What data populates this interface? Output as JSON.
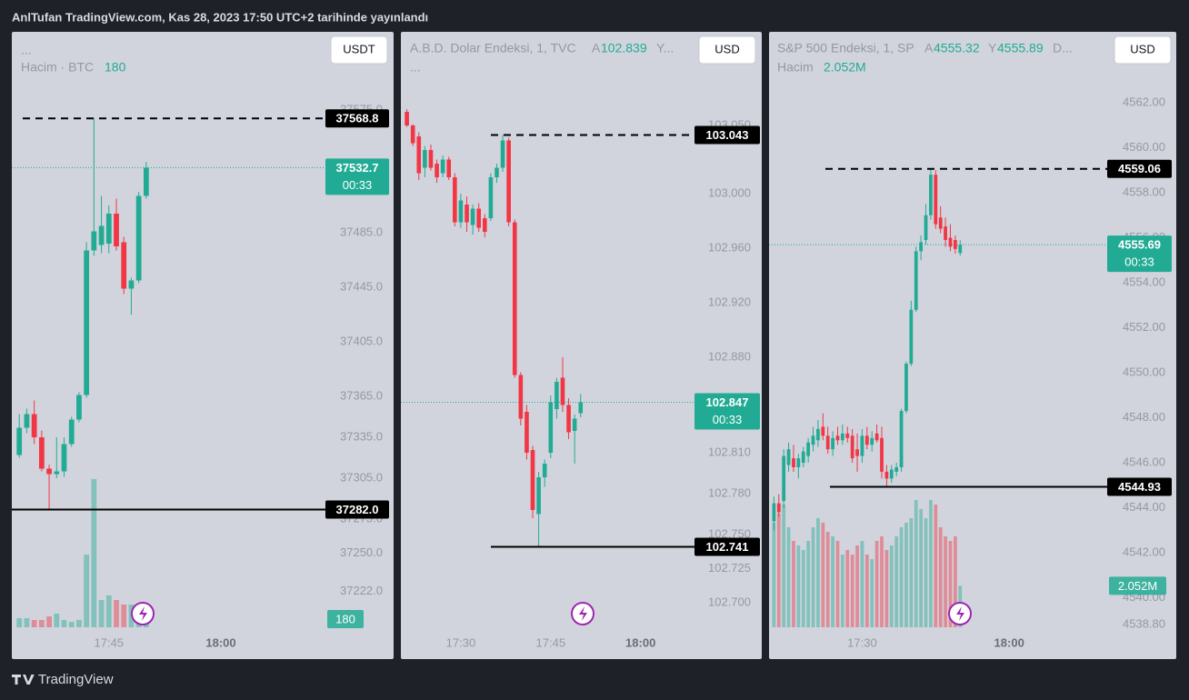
{
  "header": "AnlTufan TradingView.com, Kas 28, 2023 17:50 UTC+2 tarihinde yayınlandı",
  "footer": "TradingView",
  "chart_data": [
    {
      "type": "candlestick",
      "title": "...",
      "legend": [
        "Hacim · BTC"
      ],
      "currency": "USDT",
      "x": [
        "17:33",
        "17:34",
        "17:35",
        "17:36",
        "17:37",
        "17:38",
        "17:39",
        "17:40",
        "17:41",
        "17:42",
        "17:43",
        "17:44",
        "17:45",
        "17:46",
        "17:47",
        "17:48",
        "17:49",
        "17:50"
      ],
      "open": [
        37322,
        37342,
        37352,
        37335,
        37312,
        37308,
        37310,
        37330,
        37348,
        37366,
        37472,
        37476,
        37477,
        37499,
        37478,
        37444,
        37450,
        37512
      ],
      "high": [
        37352,
        37356,
        37362,
        37340,
        37315,
        37335,
        37335,
        37350,
        37368,
        37478,
        37568.8,
        37512,
        37505,
        37510,
        37482,
        37452,
        37515,
        37537
      ],
      "low": [
        37320,
        37338,
        37330,
        37310,
        37282,
        37305,
        37306,
        37328,
        37346,
        37364,
        37468,
        37470,
        37470,
        37472,
        37440,
        37425,
        37448,
        37510
      ],
      "close": [
        37342,
        37352,
        37335,
        37312,
        37308,
        37310,
        37330,
        37348,
        37366,
        37472,
        37486,
        37490,
        37499,
        37475,
        37444,
        37450,
        37512,
        37532.7
      ],
      "volume": {
        "values": [
          200,
          200,
          160,
          160,
          240,
          300,
          160,
          120,
          160,
          1600,
          3260,
          600,
          700,
          600,
          500,
          500,
          440,
          180
        ],
        "vlim": [
          0,
          4000
        ]
      },
      "volume_badge": {
        "value": 180
      },
      "up_color": "#22ab94",
      "down_color": "#f23645",
      "xlim": [
        "17:32",
        "18:14"
      ],
      "xticks": [
        "17:45",
        "18:00"
      ],
      "ylim": [
        37195.7,
        37632.3
      ],
      "yticks": [
        {
          "value": 37575,
          "label": "37575.0"
        },
        {
          "value": 37485,
          "label": "37485.0"
        },
        {
          "value": 37445,
          "label": "37445.0"
        },
        {
          "value": 37405,
          "label": "37405.0"
        },
        {
          "value": 37365,
          "label": "37365.0"
        },
        {
          "value": 37335,
          "label": "37335.0"
        },
        {
          "value": 37305,
          "label": "37305.0"
        },
        {
          "value": 37275,
          "label": "37275.0"
        },
        {
          "value": 37250,
          "label": "37250.0"
        },
        {
          "value": 37222,
          "label": "37222.0"
        }
      ],
      "price_lines": [
        {
          "value": 37568.8,
          "style": "dashed"
        },
        {
          "value": 37282,
          "label": "37282.0",
          "style": "solid"
        }
      ],
      "current_price": {
        "value": 37532.7,
        "countdown": "00:33"
      },
      "grid": false
    },
    {
      "type": "candlestick",
      "title": "A.B.D. Dolar Endeksi, 1, TVC",
      "legend": [
        "A",
        "Y...",
        "..."
      ],
      "currency": "USD",
      "x": [
        "17:21",
        "17:22",
        "17:23",
        "17:24",
        "17:25",
        "17:26",
        "17:27",
        "17:28",
        "17:29",
        "17:30",
        "17:31",
        "17:32",
        "17:33",
        "17:34",
        "17:35",
        "17:36",
        "17:37",
        "17:38",
        "17:39",
        "17:40",
        "17:41",
        "17:42",
        "17:43",
        "17:44",
        "17:45",
        "17:46",
        "17:47",
        "17:48",
        "17:49",
        "17:50"
      ],
      "open": [
        103.06,
        103.05,
        103.042,
        103.019,
        103.032,
        103.022,
        103.015,
        103.025,
        103.012,
        102.979,
        102.992,
        102.977,
        102.989,
        102.982,
        102.982,
        103.012,
        103.019,
        103.039,
        102.979,
        102.867,
        102.84,
        102.812,
        102.765,
        102.792,
        102.81,
        102.842,
        102.865,
        102.845,
        102.826,
        102.839
      ],
      "high": [
        103.062,
        103.051,
        103.045,
        103.035,
        103.036,
        103.025,
        103.028,
        103.027,
        103.015,
        103.0,
        102.998,
        102.992,
        102.993,
        102.985,
        103.015,
        103.022,
        103.043,
        103.041,
        102.981,
        102.869,
        102.845,
        102.815,
        102.796,
        102.805,
        102.852,
        102.865,
        102.88,
        102.85,
        102.838,
        102.853
      ],
      "low": [
        103.049,
        103.035,
        103.01,
        103.012,
        103.017,
        103.008,
        103.012,
        103.01,
        102.976,
        102.975,
        102.972,
        102.97,
        102.972,
        102.968,
        102.98,
        103.008,
        103.016,
        102.976,
        102.865,
        102.83,
        102.805,
        102.762,
        102.741,
        102.785,
        102.806,
        102.835,
        102.84,
        102.82,
        102.802,
        102.836
      ],
      "close": [
        103.05,
        103.037,
        103.015,
        103.032,
        103.019,
        103.012,
        103.025,
        103.012,
        102.979,
        102.995,
        102.979,
        102.989,
        102.975,
        102.972,
        103.012,
        103.019,
        103.039,
        102.979,
        102.867,
        102.835,
        102.81,
        102.768,
        102.792,
        102.802,
        102.847,
        102.862,
        102.845,
        102.825,
        102.835,
        102.847
      ],
      "up_color": "#22ab94",
      "down_color": "#f23645",
      "xlim": [
        "17:20",
        "18:09"
      ],
      "xticks": [
        "17:30",
        "17:45",
        "18:00"
      ],
      "ylim": [
        102.682,
        103.1187
      ],
      "yticks": [
        {
          "value": 103.05,
          "label": "103.050"
        },
        {
          "value": 103,
          "label": "103.000"
        },
        {
          "value": 102.96,
          "label": "102.960"
        },
        {
          "value": 102.92,
          "label": "102.920"
        },
        {
          "value": 102.88,
          "label": "102.880"
        },
        {
          "value": 102.81,
          "label": "102.810"
        },
        {
          "value": 102.78,
          "label": "102.780"
        },
        {
          "value": 102.75,
          "label": "102.750"
        },
        {
          "value": 102.725,
          "label": "102.725"
        },
        {
          "value": 102.7,
          "label": "102.700"
        }
      ],
      "price_lines": [
        {
          "value": 103.043,
          "style": "dashed"
        },
        {
          "value": 102.741,
          "style": "solid"
        }
      ],
      "current_price": {
        "value": 102.847,
        "countdown": "00:33"
      },
      "grid": false
    },
    {
      "type": "candlestick",
      "title": "S&P 500 Endeksi, 1, SP",
      "legend": [
        "A",
        "Y",
        "D...",
        "Hacim"
      ],
      "currency": "USD",
      "x": [
        "17:12",
        "17:13",
        "17:14",
        "17:15",
        "17:16",
        "17:17",
        "17:18",
        "17:19",
        "17:20",
        "17:21",
        "17:22",
        "17:23",
        "17:24",
        "17:25",
        "17:26",
        "17:27",
        "17:28",
        "17:29",
        "17:30",
        "17:31",
        "17:32",
        "17:33",
        "17:34",
        "17:35",
        "17:36",
        "17:37",
        "17:38",
        "17:39",
        "17:40",
        "17:41",
        "17:42",
        "17:43",
        "17:44",
        "17:45",
        "17:46",
        "17:47",
        "17:48",
        "17:49",
        "17:50"
      ],
      "open": [
        4543.4,
        4544.2,
        4544.3,
        4545.9,
        4546.2,
        4545.8,
        4546.0,
        4546.3,
        4546.8,
        4547.0,
        4547.6,
        4547.2,
        4546.6,
        4547.2,
        4547.0,
        4547.3,
        4547.2,
        4546.6,
        4546.3,
        4547.2,
        4546.8,
        4547.3,
        4547.1,
        4545.6,
        4545.3,
        4545.6,
        4545.8,
        4548.3,
        4550.4,
        4552.8,
        4555.4,
        4555.9,
        4557.0,
        4558.8,
        4556.9,
        4556.5,
        4556.0,
        4555.9,
        4555.32
      ],
      "high": [
        4544.5,
        4544.6,
        4546.6,
        4546.9,
        4546.8,
        4546.4,
        4546.7,
        4547.1,
        4547.6,
        4547.9,
        4548.2,
        4547.6,
        4547.4,
        4547.6,
        4547.7,
        4547.6,
        4547.5,
        4547.3,
        4547.5,
        4547.6,
        4547.4,
        4547.7,
        4547.6,
        4545.9,
        4545.9,
        4546.0,
        4548.4,
        4550.5,
        4553.2,
        4555.6,
        4556.1,
        4557.5,
        4559.06,
        4559.0,
        4557.4,
        4556.9,
        4556.6,
        4556.1,
        4555.89
      ],
      "low": [
        4543.0,
        4543.6,
        4544.0,
        4545.6,
        4545.6,
        4545.3,
        4545.8,
        4546.0,
        4546.5,
        4546.7,
        4547.0,
        4546.4,
        4546.3,
        4546.8,
        4546.8,
        4546.9,
        4546.0,
        4545.6,
        4546.0,
        4546.6,
        4546.5,
        4546.9,
        4545.3,
        4544.9,
        4545.1,
        4545.4,
        4545.6,
        4548.2,
        4550.3,
        4552.7,
        4555.0,
        4555.7,
        4556.8,
        4556.4,
        4556.2,
        4555.6,
        4555.4,
        4555.3,
        4555.2
      ],
      "close": [
        4544.2,
        4543.8,
        4546.3,
        4546.6,
        4545.8,
        4546.2,
        4546.5,
        4546.9,
        4547.2,
        4547.5,
        4547.2,
        4546.6,
        4547.1,
        4547.0,
        4547.3,
        4547.1,
        4546.2,
        4546.3,
        4547.2,
        4546.8,
        4547.1,
        4547.0,
        4545.6,
        4545.3,
        4545.7,
        4545.8,
        4548.3,
        4550.4,
        4552.8,
        4555.4,
        4555.8,
        4557.0,
        4558.8,
        4556.6,
        4556.4,
        4555.9,
        4555.6,
        4555.5,
        4555.69
      ],
      "volume": {
        "values": [
          5175000,
          5625000,
          6075000,
          4950000,
          4275000,
          4050000,
          3825000,
          4275000,
          4950000,
          5400000,
          5175000,
          4725000,
          4500000,
          4275000,
          3600000,
          3825000,
          3600000,
          4050000,
          4275000,
          3600000,
          3375000,
          4275000,
          4500000,
          3825000,
          4050000,
          4500000,
          4950000,
          5175000,
          5400000,
          6300000,
          5850000,
          5400000,
          6300000,
          6075000,
          4950000,
          4500000,
          4275000,
          4500000,
          2052000
        ],
        "vlim": [
          0,
          9000000
        ]
      },
      "volume_badge": {
        "value": 2052000,
        "label": "2.052M"
      },
      "up_color": "#22ab94",
      "down_color": "#f23645",
      "xlim": [
        "17:11",
        "18:20"
      ],
      "xticks": [
        "17:30",
        "18:00"
      ],
      "ylim": [
        4538.69,
        4565.15
      ],
      "yticks": [
        {
          "value": 4562,
          "label": "4562.00"
        },
        {
          "value": 4560,
          "label": "4560.00"
        },
        {
          "value": 4558,
          "label": "4558.00"
        },
        {
          "value": 4556,
          "label": "4556.00"
        },
        {
          "value": 4554,
          "label": "4554.00"
        },
        {
          "value": 4552,
          "label": "4552.00"
        },
        {
          "value": 4550,
          "label": "4550.00"
        },
        {
          "value": 4548,
          "label": "4548.00"
        },
        {
          "value": 4546,
          "label": "4546.00"
        },
        {
          "value": 4544,
          "label": "4544.00"
        },
        {
          "value": 4542,
          "label": "4542.00"
        },
        {
          "value": 4540,
          "label": "4540.00"
        },
        {
          "value": 4538.8,
          "label": "4538.80"
        }
      ],
      "price_lines": [
        {
          "value": 4559.06,
          "style": "dashed"
        },
        {
          "value": 4544.93,
          "style": "solid"
        }
      ],
      "current_price": {
        "value": 4555.69,
        "countdown": "00:33"
      },
      "grid": false
    }
  ]
}
